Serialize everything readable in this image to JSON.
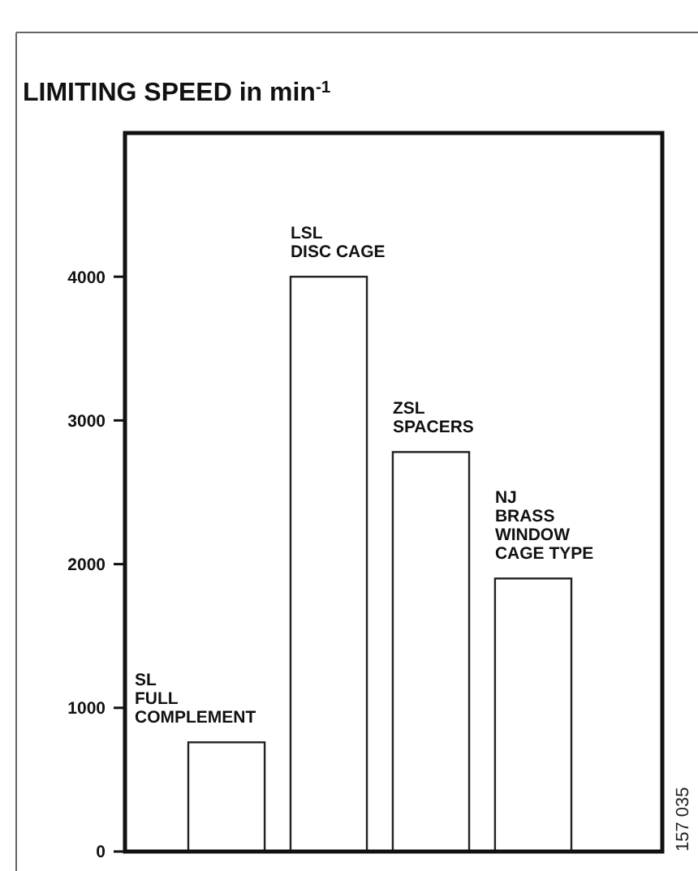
{
  "chart_data": {
    "type": "bar",
    "title": "LIMITING SPEED in min$^{-1}$",
    "categories": [
      "SL\nFULL\nCOMPLEMENT",
      "LSL\nDISC CAGE",
      "ZSL\nSPACERS",
      "NJ\nBRASS\nWINDOW\nCAGE TYPE"
    ],
    "values": [
      760,
      4000,
      2780,
      1900
    ],
    "color": "#ffffff",
    "ylim": [
      0,
      5000
    ],
    "yticks": [
      0,
      1000,
      2000,
      3000,
      4000
    ],
    "annotations": [
      "157 035"
    ],
    "grid": false
  }
}
